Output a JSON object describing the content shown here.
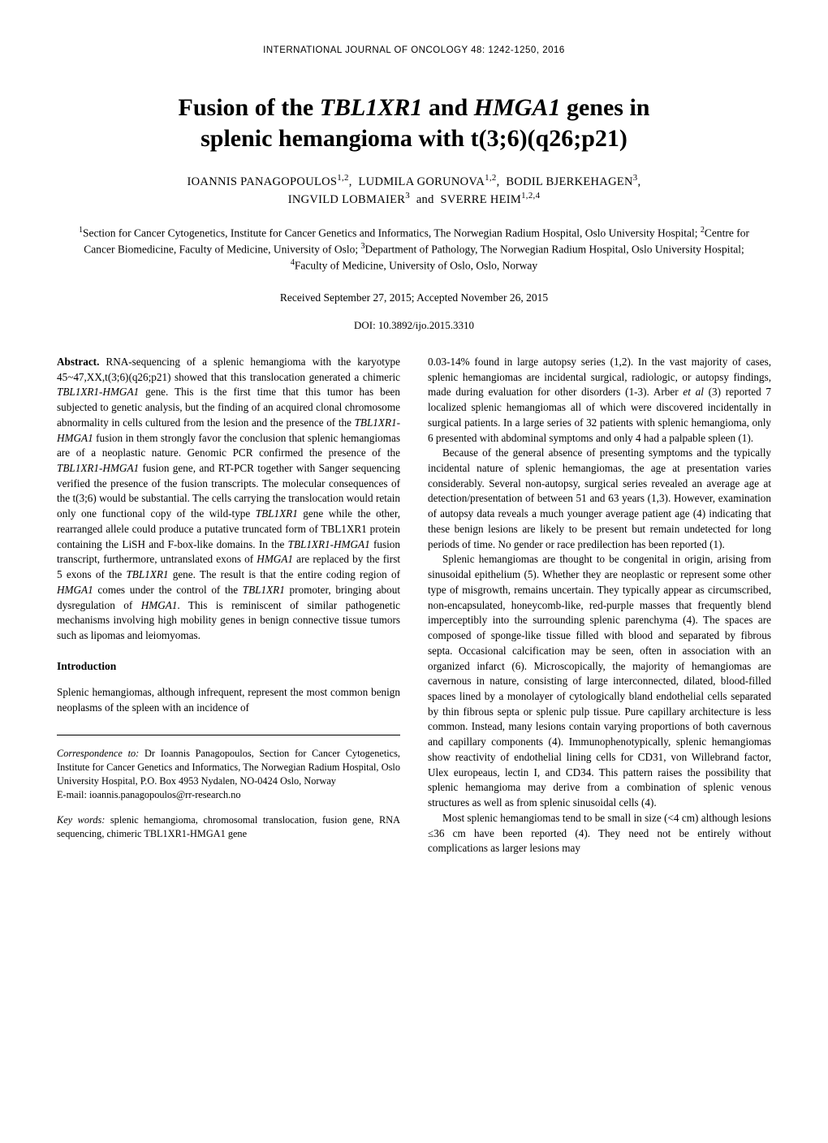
{
  "journal_header": "INTERNATIONAL JOURNAL OF ONCOLOGY  48: 1242-1250,  2016",
  "title_line1": "Fusion of the TBL1XR1 and HMGA1 genes in",
  "title_line2": "splenic hemangioma with t(3;6)(q26;p21)",
  "authors_line1_html": "IOANNIS PANAGOPOULOS<sup>1,2</sup>,&nbsp;&nbsp;LUDMILA GORUNOVA<sup>1,2</sup>,&nbsp;&nbsp;BODIL BJERKEHAGEN<sup>3</sup>,",
  "authors_line2_html": "INGVILD LOBMAIER<sup>3</sup>&nbsp;&nbsp;and&nbsp;&nbsp;SVERRE HEIM<sup>1,2,4</sup>",
  "affiliations_html": "<sup>1</sup>Section for Cancer Cytogenetics, Institute for Cancer Genetics and Informatics, The Norwegian Radium Hospital, Oslo University Hospital; <sup>2</sup>Centre for Cancer Biomedicine, Faculty of Medicine, University of Oslo; <sup>3</sup>Department of Pathology, The Norwegian Radium Hospital, Oslo University Hospital; <sup>4</sup>Faculty of Medicine, University of Oslo, Oslo, Norway",
  "received": "Received September 27, 2015;   Accepted November 26, 2015",
  "doi": "DOI: 10.3892/ijo.2015.3310",
  "abstract_label": "Abstract.",
  "abstract_body_html": " RNA-sequencing of a splenic hemangioma with the karyotype 45~47,XX,t(3;6)(q26;p21) showed that this translocation generated a chimeric <span class='ital'>TBL1XR1-HMGA1</span> gene. This is the first time that this tumor has been subjected to genetic analysis, but the finding of an acquired clonal chromosome abnormality in cells cultured from the lesion and the presence of the <span class='ital'>TBL1XR1-HMGA1</span> fusion in them strongly favor the conclusion that splenic hemangiomas are of a neoplastic nature. Genomic PCR confirmed the presence of the <span class='ital'>TBL1XR1-HMGA1</span> fusion gene, and RT-PCR together with Sanger sequencing verified the presence of the fusion transcripts. The molecular consequences of the t(3;6) would be substantial. The cells carrying the translocation would retain only one functional copy of the wild-type <span class='ital'>TBL1XR1</span> gene while the other, rearranged allele could produce a putative truncated form of TBL1XR1 protein containing the LiSH and F-box-like domains. In the <span class='ital'>TBL1XR1-HMGA1</span> fusion transcript, furthermore, untranslated exons of <span class='ital'>HMGA1</span> are replaced by the first 5 exons of the <span class='ital'>TBL1XR1</span> gene. The result is that the entire coding region of <span class='ital'>HMGA1</span> comes under the control of the <span class='ital'>TBL1XR1</span> promoter, bringing about dysregulation of <span class='ital'>HMGA1</span>. This is reminiscent of similar pathogenetic mechanisms involving high mobility genes in benign connective tissue tumors such as lipomas and leiomyomas.",
  "intro_heading": "Introduction",
  "intro_para1": "Splenic hemangiomas, although infrequent, represent the most common benign neoplasms of the spleen with an incidence of",
  "correspondence_label": "Correspondence to:",
  "correspondence_body": " Dr Ioannis Panagopoulos, Section for Cancer Cytogenetics, Institute for Cancer Genetics and Informatics, The Norwegian Radium Hospital, Oslo University Hospital, P.O. Box 4953 Nydalen, NO-0424 Oslo, Norway",
  "correspondence_email": "E-mail: ioannis.panagopoulos@rr-research.no",
  "keywords_label": "Key words:",
  "keywords_body": " splenic hemangioma, chromosomal translocation, fusion gene, RNA sequencing, chimeric TBL1XR1-HMGA1 gene",
  "col2_p1_html": "0.03-14% found in large autopsy series (1,2). In the vast majority of cases, splenic hemangiomas are incidental surgical, radiologic, or autopsy findings, made during evaluation for other disorders (1-3). Arber <span class='ital'>et al</span> (3) reported 7 localized splenic hemangiomas all of which were discovered incidentally in surgical patients. In a large series of 32 patients with splenic hemangioma, only 6 presented with abdominal symptoms and only 4 had a palpable spleen (1).",
  "col2_p2": "Because of the general absence of presenting symptoms and the typically incidental nature of splenic hemangiomas, the age at presentation varies considerably. Several non-autopsy, surgical series revealed an average age at detection/presentation of between 51 and 63 years (1,3). However, examination of autopsy data reveals a much younger average patient age (4) indicating that these benign lesions are likely to be present but remain undetected for long periods of time. No gender or race predilection has been reported (1).",
  "col2_p3": "Splenic hemangiomas are thought to be congenital in origin, arising from sinusoidal epithelium (5). Whether they are neoplastic or represent some other type of misgrowth, remains uncertain. They typically appear as circumscribed, non-encapsulated, honeycomb-like, red-purple masses that frequently blend imperceptibly into the surrounding splenic parenchyma (4). The spaces are composed of sponge-like tissue filled with blood and separated by fibrous septa. Occasional calcification may be seen, often in association with an organized infarct (6). Microscopically, the majority of hemangiomas are cavernous in nature, consisting of large interconnected, dilated, blood-filled spaces lined by a monolayer of cytologically bland endothelial cells separated by thin fibrous septa or splenic pulp tissue. Pure capillary architecture is less common. Instead, many lesions contain varying proportions of both cavernous and capillary components (4). Immunophenotypically, splenic hemangiomas show reactivity of endothelial lining cells for CD31, von Willebrand factor, Ulex europeaus, lectin I, and CD34. This pattern raises the possibility that splenic hemangioma may derive from a combination of splenic venous structures as well as from splenic sinusoidal cells (4).",
  "col2_p4": "Most splenic hemangiomas tend to be small in size (<4 cm) although lesions ≤36 cm have been reported (4). They need not be entirely without complications as larger lesions may"
}
